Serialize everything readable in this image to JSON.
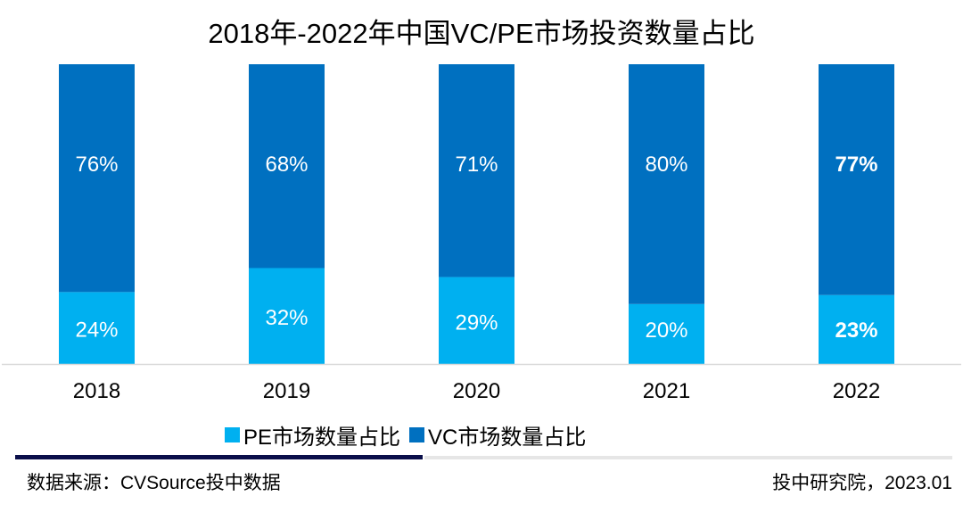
{
  "chart_data": {
    "type": "bar",
    "stacked": true,
    "title": "2018年-2022年中国VC/PE市场投资数量占比",
    "categories": [
      "2018",
      "2019",
      "2020",
      "2021",
      "2022"
    ],
    "series": [
      {
        "name": "PE市场数量占比",
        "color": "#00B0F0",
        "values": [
          24,
          32,
          29,
          20,
          23
        ],
        "labels": [
          "24%",
          "32%",
          "29%",
          "20%",
          "23%"
        ]
      },
      {
        "name": "VC市场数量占比",
        "color": "#0070C0",
        "values": [
          76,
          68,
          71,
          80,
          77
        ],
        "labels": [
          "76%",
          "68%",
          "71%",
          "80%",
          "77%"
        ]
      }
    ],
    "ylim": [
      0,
      100
    ],
    "grid": false,
    "legend": "bottom",
    "bold_category": "2022"
  },
  "footer": {
    "source": "数据来源：CVSource投中数据",
    "credit": "投中研究院，2023.01"
  }
}
